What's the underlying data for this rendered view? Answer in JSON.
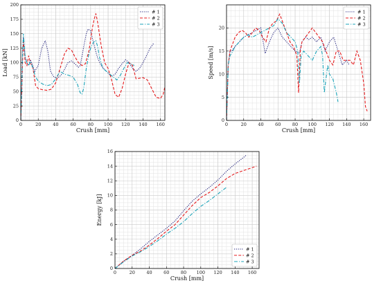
{
  "chart_data": [
    {
      "type": "line",
      "xlabel": "Crush [mm]",
      "ylabel": "Load [kN]",
      "xlim": [
        0,
        165
      ],
      "ylim": [
        0,
        200
      ],
      "xticks": [
        0,
        20,
        40,
        60,
        80,
        100,
        120,
        140,
        160
      ],
      "yticks": [
        0,
        25,
        50,
        75,
        100,
        125,
        150,
        175,
        200
      ],
      "grid": true,
      "legend": "top-right",
      "series": [
        {
          "name": "# 1",
          "color": "#1f1f7a",
          "dash": "dotted",
          "x": [
            0,
            1,
            2,
            3,
            4,
            5,
            7,
            9,
            11,
            13,
            16,
            20,
            24,
            28,
            31,
            34,
            38,
            42,
            46,
            50,
            54,
            58,
            62,
            66,
            68,
            70,
            73,
            75,
            77,
            80,
            84,
            88,
            92,
            96,
            100,
            104,
            108,
            112,
            116,
            120,
            124,
            128,
            132,
            136,
            140,
            144,
            148,
            152
          ],
          "y": [
            0,
            60,
            120,
            145,
            125,
            110,
            100,
            95,
            105,
            98,
            85,
            95,
            125,
            138,
            120,
            85,
            75,
            73,
            78,
            88,
            100,
            103,
            98,
            92,
            95,
            110,
            135,
            150,
            158,
            155,
            130,
            108,
            95,
            88,
            82,
            76,
            80,
            90,
            98,
            105,
            100,
            90,
            85,
            90,
            100,
            112,
            125,
            133
          ]
        },
        {
          "name": "# 2",
          "color": "#e41a1c",
          "dash": "dashed",
          "x": [
            0,
            1,
            2,
            3,
            4,
            5,
            7,
            9,
            11,
            14,
            17,
            20,
            25,
            30,
            35,
            40,
            45,
            50,
            54,
            58,
            62,
            66,
            70,
            74,
            78,
            82,
            84,
            86,
            88,
            92,
            96,
            100,
            104,
            108,
            112,
            116,
            120,
            124,
            128,
            132,
            136,
            140,
            145,
            150,
            155,
            160,
            163,
            165
          ],
          "y": [
            0,
            40,
            100,
            140,
            120,
            100,
            95,
            112,
            100,
            90,
            60,
            55,
            53,
            52,
            54,
            65,
            90,
            115,
            125,
            122,
            110,
            100,
            95,
            98,
            120,
            160,
            175,
            185,
            170,
            130,
            100,
            90,
            70,
            45,
            40,
            55,
            80,
            100,
            95,
            72,
            73,
            74,
            70,
            55,
            40,
            38,
            45,
            58
          ]
        },
        {
          "name": "# 3",
          "color": "#1aa3b8",
          "dash": "dashdot",
          "x": [
            0,
            1,
            2,
            3,
            4,
            5,
            7,
            9,
            11,
            14,
            17,
            20,
            25,
            30,
            35,
            40,
            45,
            50,
            55,
            60,
            65,
            68,
            70,
            72,
            75,
            78,
            80,
            83,
            86,
            88,
            90,
            94,
            98,
            102,
            106,
            110,
            114,
            118,
            122,
            126,
            130
          ],
          "y": [
            0,
            50,
            110,
            150,
            130,
            110,
            100,
            95,
            102,
            90,
            75,
            68,
            63,
            60,
            62,
            72,
            85,
            80,
            78,
            75,
            62,
            48,
            45,
            55,
            90,
            115,
            125,
            135,
            138,
            128,
            110,
            90,
            85,
            80,
            75,
            70,
            78,
            90,
            100,
            98,
            95
          ]
        }
      ]
    },
    {
      "type": "line",
      "xlabel": "Crush [mm]",
      "ylabel": "Speed [m/s]",
      "xlim": [
        0,
        168
      ],
      "ylim": [
        0,
        25
      ],
      "xticks": [
        0,
        20,
        40,
        60,
        80,
        100,
        120,
        140,
        160
      ],
      "yticks": [
        0,
        5,
        10,
        15,
        20
      ],
      "grid": true,
      "legend": "top-right",
      "series": [
        {
          "name": "# 1",
          "color": "#1f1f7a",
          "dash": "dotted",
          "x": [
            0,
            2,
            4,
            6,
            10,
            15,
            20,
            25,
            30,
            35,
            40,
            45,
            50,
            55,
            60,
            65,
            70,
            75,
            80,
            85,
            88,
            92,
            96,
            100,
            105,
            110,
            115,
            120,
            125,
            130,
            135,
            140,
            143
          ],
          "y": [
            0,
            12,
            15,
            15,
            16,
            17,
            18,
            18.5,
            19,
            19.5,
            20,
            14.5,
            17,
            19,
            20,
            18,
            17,
            16,
            15,
            14.5,
            17,
            18,
            17.5,
            18,
            17,
            18,
            15,
            17,
            18,
            15,
            12,
            13,
            12
          ]
        },
        {
          "name": "# 2",
          "color": "#e41a1c",
          "dash": "dashed",
          "x": [
            0,
            2,
            4,
            6,
            10,
            14,
            18,
            22,
            26,
            30,
            34,
            38,
            42,
            46,
            50,
            54,
            58,
            62,
            66,
            70,
            74,
            78,
            82,
            84,
            86,
            88,
            92,
            96,
            100,
            104,
            108,
            112,
            116,
            120,
            124,
            128,
            132,
            136,
            140,
            144,
            148,
            152,
            156,
            160,
            162,
            164
          ],
          "y": [
            0,
            12,
            15,
            16,
            18,
            19,
            19.5,
            19,
            18,
            19,
            20,
            19.5,
            18,
            17,
            20,
            21,
            21.5,
            23,
            21,
            19,
            17,
            16,
            14,
            6,
            15,
            17,
            18,
            19,
            20,
            19,
            18,
            17,
            15,
            13,
            12,
            15,
            15,
            13,
            13,
            13,
            12,
            15,
            13,
            8,
            3,
            2
          ]
        },
        {
          "name": "# 3",
          "color": "#1aa3b8",
          "dash": "dashdot",
          "x": [
            0,
            2,
            4,
            6,
            10,
            15,
            20,
            25,
            30,
            35,
            40,
            45,
            50,
            55,
            60,
            65,
            70,
            75,
            80,
            83,
            85,
            87,
            90,
            95,
            100,
            105,
            110,
            112,
            114,
            116,
            118,
            120,
            124,
            128,
            130
          ],
          "y": [
            0,
            12,
            14,
            14.5,
            16,
            17,
            18,
            18.5,
            18,
            18.5,
            19,
            19.5,
            20,
            20.5,
            22,
            21,
            19,
            18,
            17,
            15,
            8,
            14,
            15,
            14,
            13,
            15,
            16,
            14,
            6,
            9,
            12,
            10,
            9,
            6,
            4
          ]
        }
      ]
    },
    {
      "type": "line",
      "xlabel": "Crush [mm]",
      "ylabel": "Energy [kJ]",
      "xlim": [
        0,
        168
      ],
      "ylim": [
        0,
        16
      ],
      "xticks": [
        0,
        20,
        40,
        60,
        80,
        100,
        120,
        140,
        160
      ],
      "yticks": [
        0,
        2,
        4,
        6,
        8,
        10,
        12,
        14,
        16
      ],
      "grid": true,
      "legend": "bottom-right",
      "series": [
        {
          "name": "# 1",
          "color": "#1f1f7a",
          "dash": "dotted",
          "x": [
            0,
            10,
            20,
            30,
            40,
            50,
            60,
            70,
            80,
            90,
            100,
            110,
            120,
            130,
            140,
            150,
            153
          ],
          "y": [
            0,
            1.0,
            1.8,
            2.7,
            3.7,
            4.6,
            5.5,
            6.5,
            7.9,
            9.2,
            10.2,
            11.1,
            12.1,
            13.3,
            14.3,
            15.2,
            15.5
          ]
        },
        {
          "name": "# 2",
          "color": "#e41a1c",
          "dash": "dashed",
          "x": [
            0,
            10,
            20,
            30,
            40,
            50,
            60,
            70,
            80,
            90,
            100,
            110,
            120,
            130,
            140,
            150,
            160,
            165
          ],
          "y": [
            0,
            1.0,
            1.8,
            2.4,
            3.2,
            4.1,
            5.1,
            6.0,
            7.3,
            8.6,
            9.7,
            10.4,
            11.3,
            12.3,
            13.0,
            13.4,
            13.8,
            14.0
          ]
        },
        {
          "name": "# 3",
          "color": "#1aa3b8",
          "dash": "dashdot",
          "x": [
            0,
            10,
            20,
            30,
            40,
            50,
            60,
            70,
            80,
            90,
            100,
            110,
            120,
            130
          ],
          "y": [
            0,
            0.9,
            1.7,
            2.3,
            3.0,
            3.8,
            4.7,
            5.5,
            6.4,
            7.5,
            8.5,
            9.3,
            10.2,
            11.1
          ]
        }
      ]
    }
  ]
}
